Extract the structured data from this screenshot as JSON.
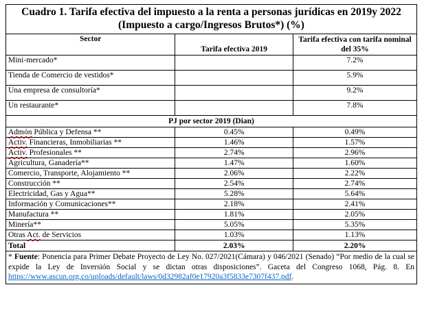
{
  "title_line1": "Cuadro 1. Tarifa efectiva del impuesto a la renta a personas jurídicas en 2019y 2022",
  "title_line2": "(Impuesto a cargo/Ingresos Brutos*) (%)",
  "headers": {
    "sector": "Sector",
    "effective": "Tarifa efectiva 2019",
    "nominal_line1": "Tarifa efectiva con tarifa nominal",
    "nominal_line2": "del 35%"
  },
  "examples": [
    {
      "sector": "Mini-mercado*",
      "effective": "",
      "nominal": "7.2%"
    },
    {
      "sector": "Tienda de Comercio de vestidos*",
      "effective": "",
      "nominal": "5.9%"
    },
    {
      "sector": "Una empresa de consultoría*",
      "effective": "",
      "nominal": "9.2%"
    },
    {
      "sector": "Un restaurante*",
      "effective": "",
      "nominal": "7.8%"
    }
  ],
  "subheader": "PJ por sector 2019 (Dian)",
  "sectors": [
    {
      "pre": "",
      "wavy": "Admón",
      "post": " Pública y Defensa **",
      "effective": "0.45%",
      "nominal": "0.49%"
    },
    {
      "pre": "",
      "wavy": "Activ.",
      "post": " Financieras, Inmobiliarias **",
      "effective": "1.46%",
      "nominal": "1.57%"
    },
    {
      "pre": "",
      "wavy": "Activ.",
      "post": " Profesionales **",
      "effective": "2.74%",
      "nominal": "2.96%"
    },
    {
      "pre": "Agricultura, Ganadería**",
      "wavy": "",
      "post": "",
      "effective": "1.47%",
      "nominal": "1.60%"
    },
    {
      "pre": "Comercio, Transporte, Alojamiento **",
      "wavy": "",
      "post": "",
      "effective": "2.06%",
      "nominal": "2.22%"
    },
    {
      "pre": "Construcción **",
      "wavy": "",
      "post": "",
      "effective": "2.54%",
      "nominal": "2.74%"
    },
    {
      "pre": "Electricidad, Gas y Agua**",
      "wavy": "",
      "post": "",
      "effective": "5.28%",
      "nominal": "5.64%"
    },
    {
      "pre": "Información y Comunicaciones**",
      "wavy": "",
      "post": "",
      "effective": "2.18%",
      "nominal": "2.41%"
    },
    {
      "pre": "Manufactura **",
      "wavy": "",
      "post": "",
      "effective": "1.81%",
      "nominal": "2.05%"
    },
    {
      "pre": "Minería**",
      "wavy": "",
      "post": "",
      "effective": "5.05%",
      "nominal": "5.35%"
    },
    {
      "pre": "Otras ",
      "wavy": "Act.",
      "post": " de Servicios",
      "effective": "1.03%",
      "nominal": "1.13%"
    }
  ],
  "total": {
    "label": "Total",
    "effective": "2.03%",
    "nominal": "2.20%"
  },
  "footnote": {
    "marker": "* ",
    "label": "Fuente",
    "text": ": Ponencia para Primer Debate Proyecto de Ley No. 027/2021(Cámara) y 046/2021 (Senado) “Por medio de la cual se expide la Ley de Inversión Social y se dictan otras disposiciones”. Gaceta del Congreso 1068, Pág. 8. En ",
    "link": "https://www.ascun.org.co/uploads/default/laws/0d32982af0e17920a3f5833e7307f437.pdf",
    "end": "."
  }
}
